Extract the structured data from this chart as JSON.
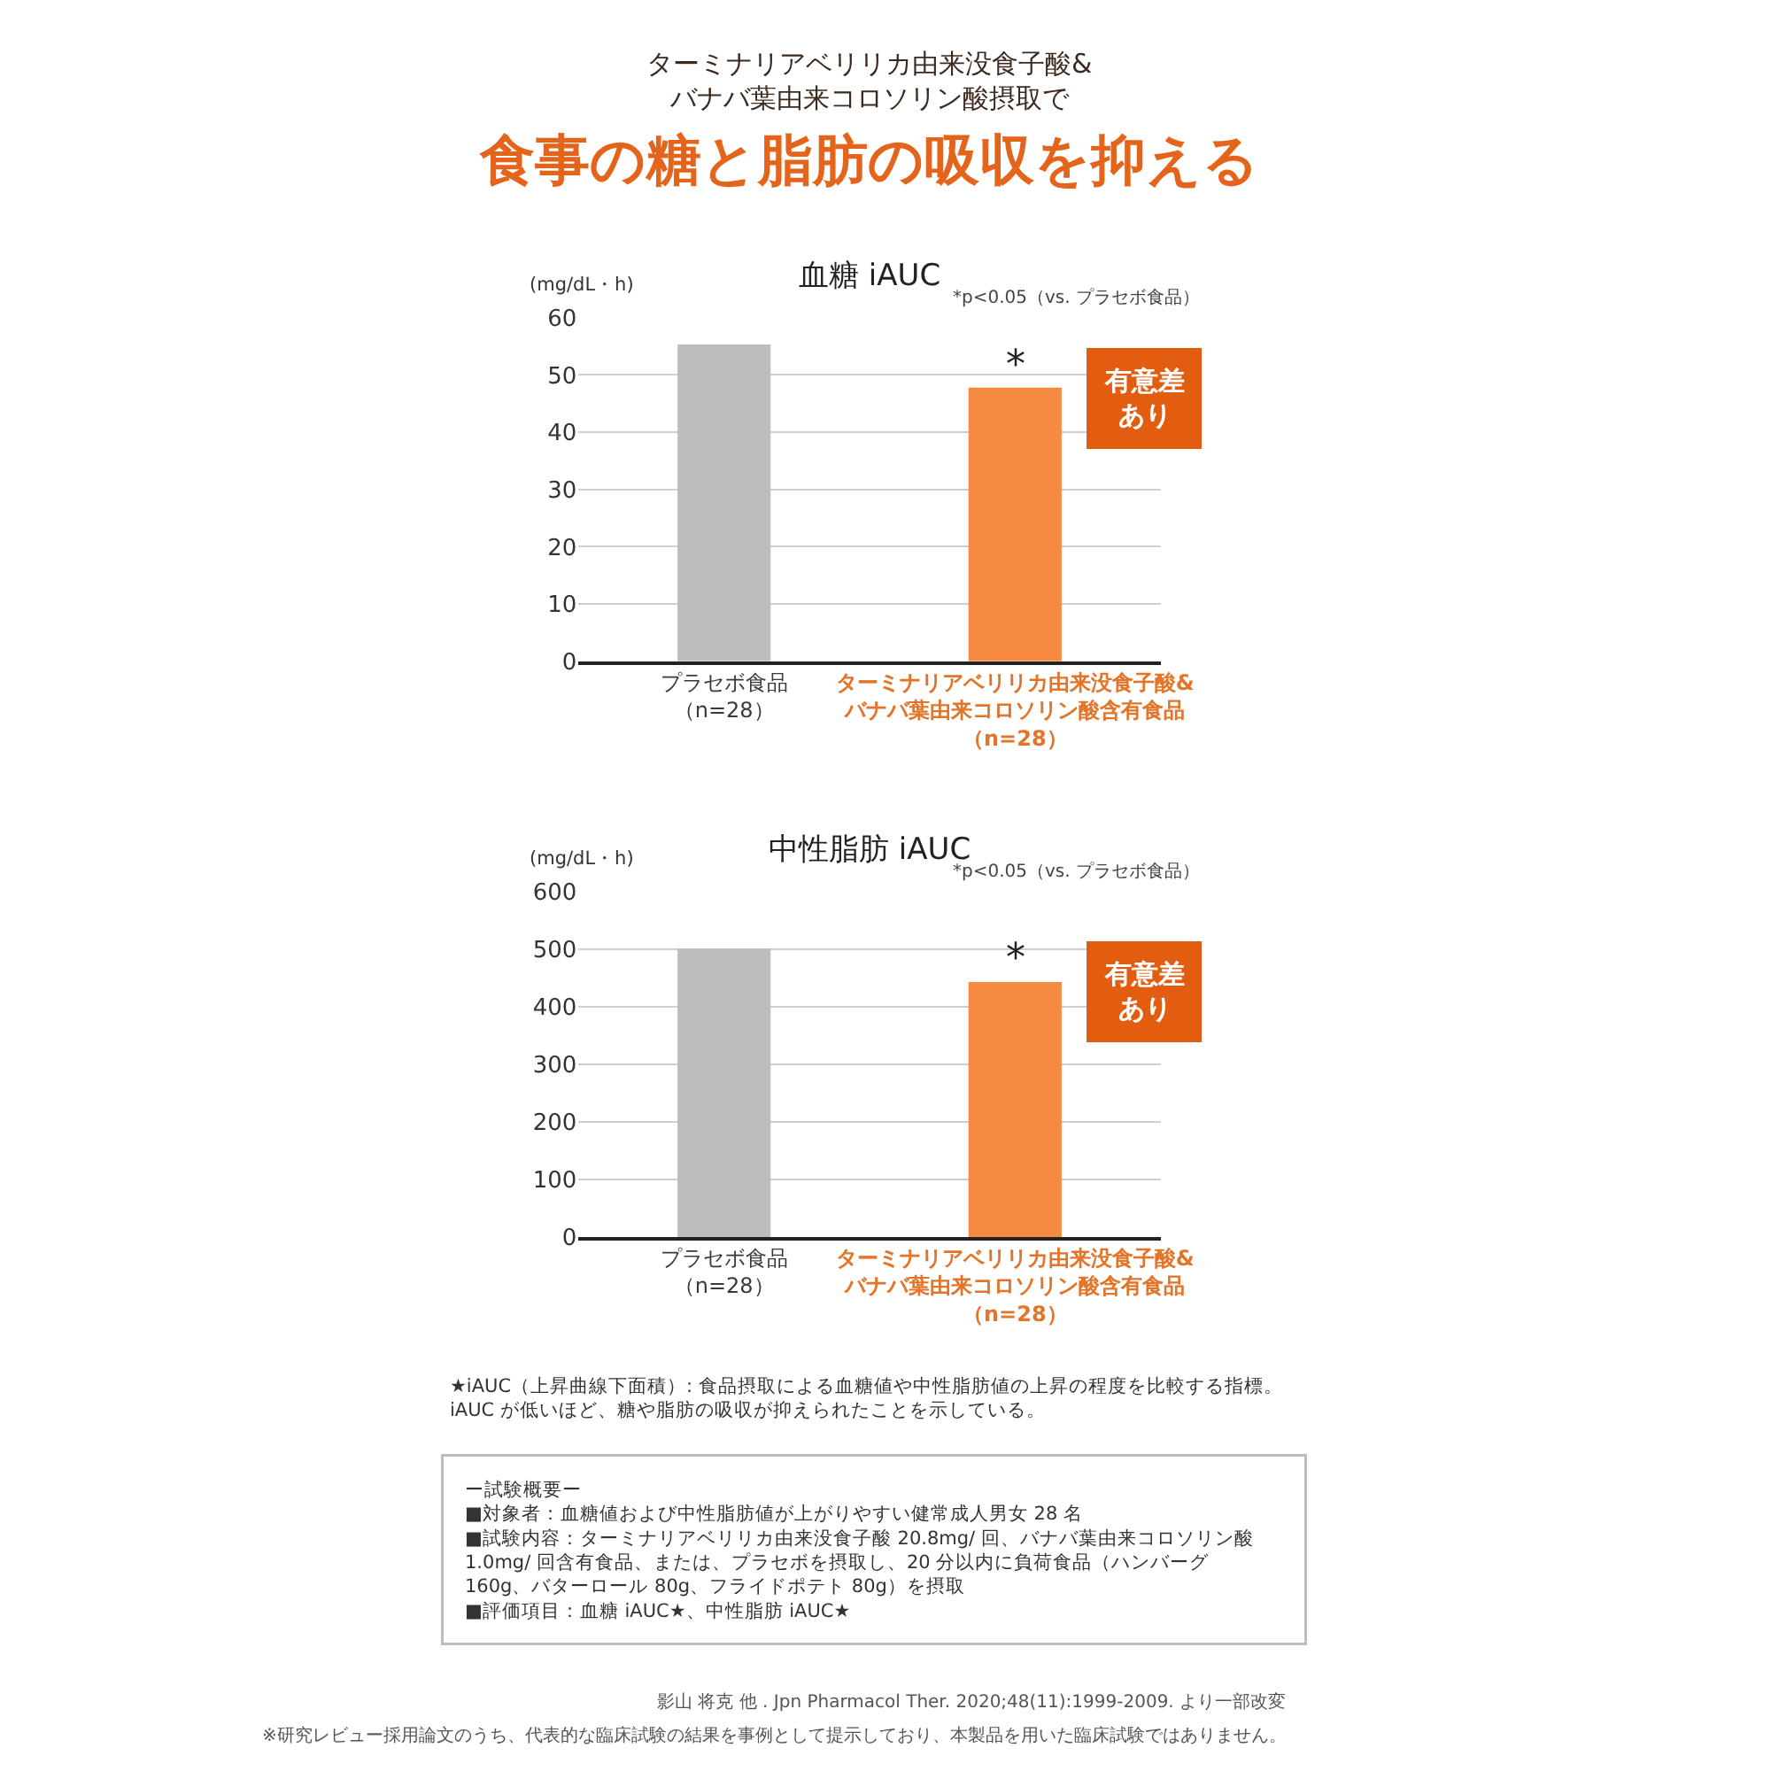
{
  "chart_data": [
    {
      "type": "other",
      "subtitle": "ターミナリアベリリカ由来没食子酸&\nバナバ葉由来コロソリン酸摂取で",
      "title": "食事の糖と脂肪の吸収を抑える"
    },
    {
      "type": "bar",
      "title": "血糖 iAUC",
      "ylabel": "(mg/dL・h)",
      "categories": [
        "プラセボ食品（n=28）",
        "ターミナリアベリリカ由来没食子酸&\nバナバ葉由来コロソリン酸含有食品（n=28）"
      ],
      "values": [
        55.3,
        47.8
      ],
      "colors": [
        "#bdbdbd",
        "#f68a40"
      ],
      "ylim": [
        0,
        60
      ],
      "yticks": [
        0,
        10,
        20,
        30,
        40,
        50,
        60
      ],
      "grid": "y",
      "annotations": [
        "*p<0.05（vs. プラセボ食品）",
        {
          "text": "*",
          "x": "ターミナリアベリリカ由来没食子酸&\nバナバ葉由来コロソリン酸含有食品（n=28）",
          "y": 47.8
        },
        "有意差あり"
      ]
    },
    {
      "type": "bar",
      "title": "中性脂肪 iAUC",
      "ylabel": "(mg/dL・h)",
      "categories": [
        "プラセボ食品（n=28）",
        "ターミナリアベリリカ由来没食子酸&\nバナバ葉由来コロソリン酸含有食品（n=28）"
      ],
      "values": [
        501,
        443
      ],
      "colors": [
        "#bdbdbd",
        "#f68a40"
      ],
      "ylim": [
        0,
        600
      ],
      "yticks": [
        0,
        100,
        200,
        300,
        400,
        500,
        600
      ],
      "grid": "y",
      "annotations": [
        "*p<0.05（vs. プラセボ食品）",
        {
          "text": "*",
          "x": "ターミナリアベリリカ由来没食子酸&\nバナバ葉由来コロソリン酸含有食品（n=28）",
          "y": 443
        },
        "有意差あり"
      ]
    },
    {
      "type": "other",
      "annotations": [
        "★iAUC（上昇曲線下面積）: 食品摂取による血糖値や中性脂肪値の上昇の程度を比較する指標。iAUC が低いほど、糖や脂肪の吸収が抑えられたことを示している。"
      ]
    },
    {
      "type": "other",
      "title": "ー試験概要ー",
      "annotations": [
        "■対象者：血糖値および中性脂肪値が上がりやすい健常成人男女 28 名",
        "■試験内容：ターミナリアベリリカ由来没食子酸 20.8mg/ 回、バナバ葉由来コロソリン酸 1.0mg/ 回含有食品、または、プラセボを摂取し、20 分以内に負荷食品（ハンバーグ 160g、バターロール 80g、フライドポテト 80g）を摂取",
        "■評価項目：血糖 iAUC★、中性脂肪 iAUC★"
      ]
    },
    {
      "type": "other",
      "annotations": [
        "影山 将克 他 . Jpn Pharmacol Ther. 2020;48(11):1999-2009. より一部改変",
        "※研究レビュー採用論文のうち、代表的な臨床試験の結果を事例として提示しており、本製品を用いた臨床試験ではありません。"
      ]
    }
  ]
}
